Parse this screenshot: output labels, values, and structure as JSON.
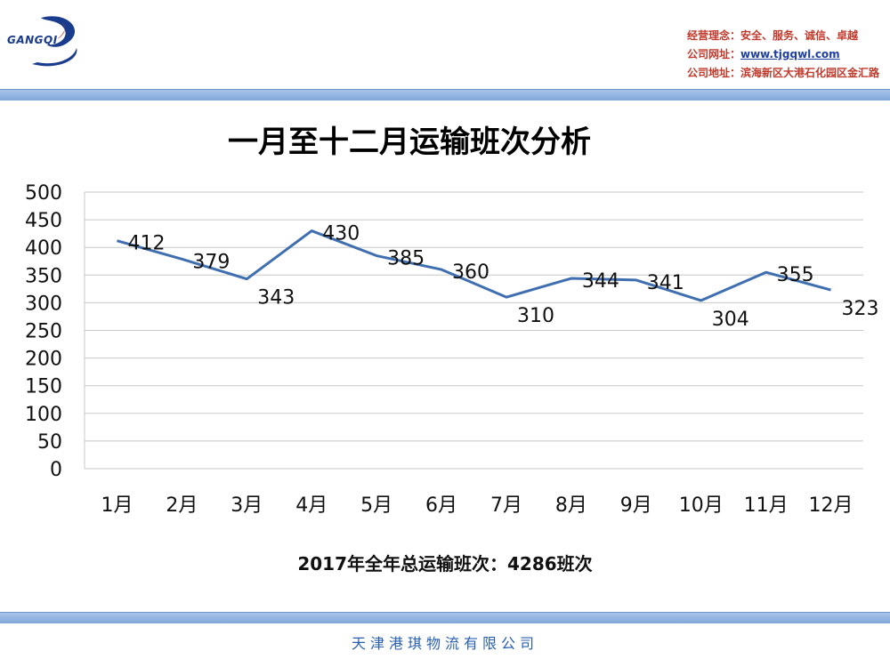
{
  "header": {
    "logo_text": "GANGQI",
    "philosophy_label": "经营理念：",
    "philosophy_value": "安全、服务、诚信、卓越",
    "website_label": "公司网址：",
    "website_value": "www.tjgqwl.com",
    "address_label": "公司地址：",
    "address_value": "滨海新区大港石化园区金汇路"
  },
  "colors": {
    "line": "#3f6fb0",
    "grid": "#c8c8c8",
    "accent_bar": "#8fb0df",
    "header_red": "#c0392b"
  },
  "chart_data": {
    "type": "line",
    "title": "一月至十二月运输班次分析",
    "categories": [
      "1月",
      "2月",
      "3月",
      "4月",
      "5月",
      "6月",
      "7月",
      "8月",
      "9月",
      "10月",
      "11月",
      "12月"
    ],
    "series": [
      {
        "values": [
          412,
          379,
          343,
          430,
          385,
          360,
          310,
          344,
          341,
          304,
          355,
          323
        ]
      }
    ],
    "data_labels": [
      "412",
      "379",
      "343",
      "430",
      "385",
      "360",
      "310",
      "344",
      "341",
      "304",
      "355",
      "323"
    ],
    "ylim": [
      0,
      500
    ],
    "y_ticks": [
      "0",
      "50",
      "100",
      "150",
      "200",
      "250",
      "300",
      "350",
      "400",
      "450",
      "500"
    ],
    "grid": true,
    "legend": false
  },
  "summary": "2017年全年总运输班次：4286班次",
  "footer": "天津港琪物流有限公司"
}
